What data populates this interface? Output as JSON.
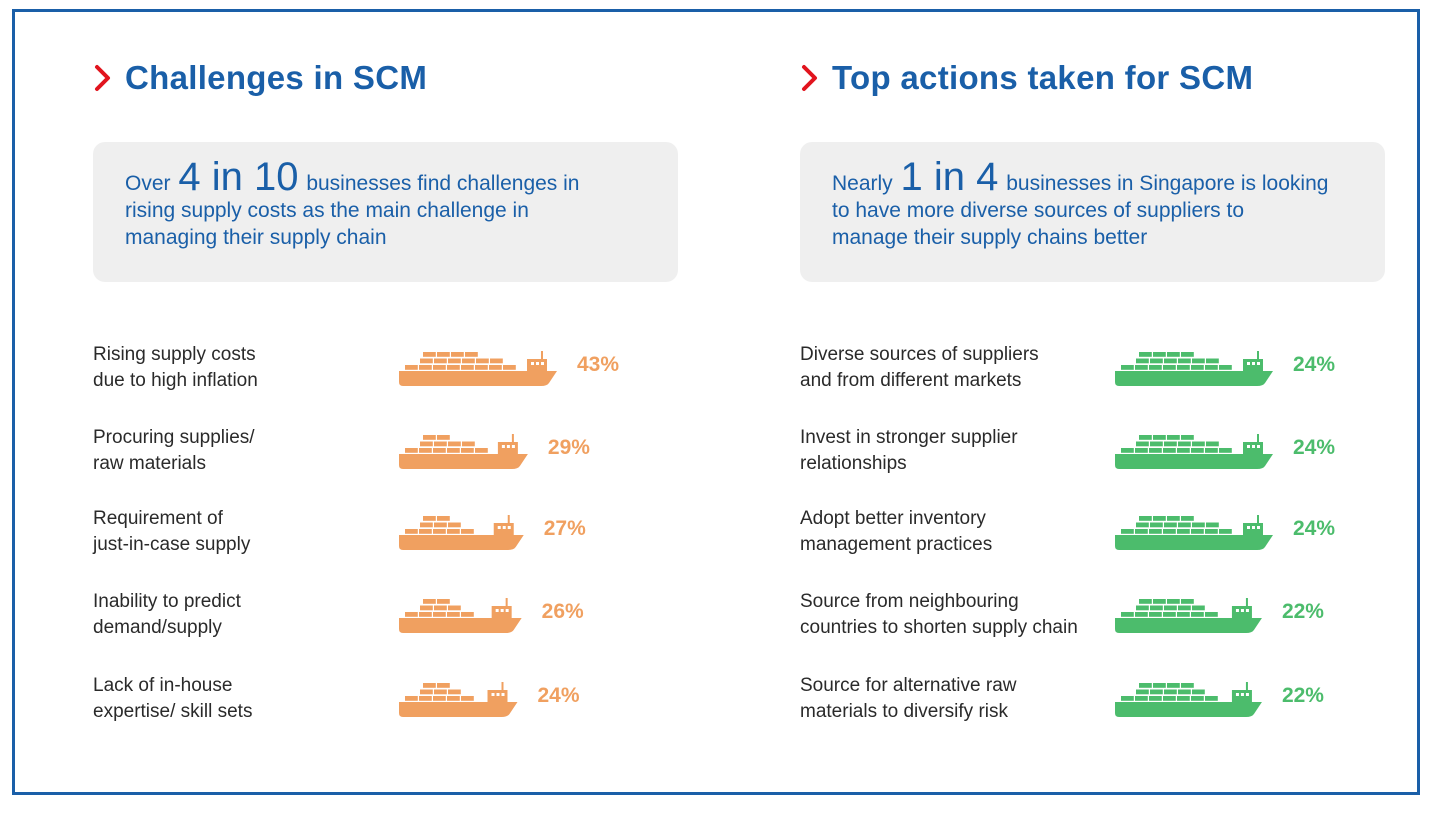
{
  "colors": {
    "title": "#1a5fa8",
    "chevron": "#e1141e",
    "challenge": "#f0a060",
    "action": "#4cbc6c",
    "border": "#1a5fa8",
    "callout_bg": "#efefef"
  },
  "left": {
    "title": "Challenges in SCM",
    "callout": {
      "prefix": "Over",
      "big": "4 in 10",
      "line1_rest": "businesses find challenges in",
      "line2": "rising supply costs as the main challenge in",
      "line3": "managing their supply chain"
    },
    "items": [
      {
        "line1": "Rising supply costs",
        "line2": "due to high inflation",
        "pct": "43%"
      },
      {
        "line1": "Procuring supplies/",
        "line2": "raw materials",
        "pct": "29%"
      },
      {
        "line1": "Requirement of",
        "line2": "just-in-case supply",
        "pct": "27%"
      },
      {
        "line1": "Inability to predict",
        "line2": "demand/supply",
        "pct": "26%"
      },
      {
        "line1": "Lack of in-house",
        "line2": "expertise/ skill sets",
        "pct": "24%"
      }
    ]
  },
  "right": {
    "title": "Top actions taken for SCM",
    "callout": {
      "prefix": "Nearly",
      "big": "1 in 4",
      "line1_rest": "businesses in Singapore is looking",
      "line2": "to have more diverse sources of suppliers to",
      "line3": "manage their supply chains better"
    },
    "items": [
      {
        "line1": "Diverse sources of suppliers",
        "line2": "and from different markets",
        "pct": "24%"
      },
      {
        "line1": "Invest in stronger supplier",
        "line2": "relationships",
        "pct": "24%"
      },
      {
        "line1": "Adopt better inventory",
        "line2": "management practices",
        "pct": "24%"
      },
      {
        "line1": "Source from neighbouring",
        "line2": "countries to shorten supply chain",
        "pct": "22%"
      },
      {
        "line1": "Source for alternative raw",
        "line2": "materials to diversify risk",
        "pct": "22%"
      }
    ]
  },
  "chart_data": [
    {
      "type": "bar",
      "title": "Challenges in SCM",
      "categories": [
        "Rising supply costs due to high inflation",
        "Procuring supplies/ raw materials",
        "Requirement of just-in-case supply",
        "Inability to predict demand/supply",
        "Lack of in-house expertise/ skill sets"
      ],
      "values": [
        43,
        29,
        27,
        26,
        24
      ],
      "unit": "%"
    },
    {
      "type": "bar",
      "title": "Top actions taken for SCM",
      "categories": [
        "Diverse sources of suppliers and from different markets",
        "Invest in stronger supplier relationships",
        "Adopt better inventory management practices",
        "Source from neighbouring countries to shorten supply chain",
        "Source for alternative raw materials to diversify risk"
      ],
      "values": [
        24,
        24,
        24,
        22,
        22
      ],
      "unit": "%"
    }
  ]
}
